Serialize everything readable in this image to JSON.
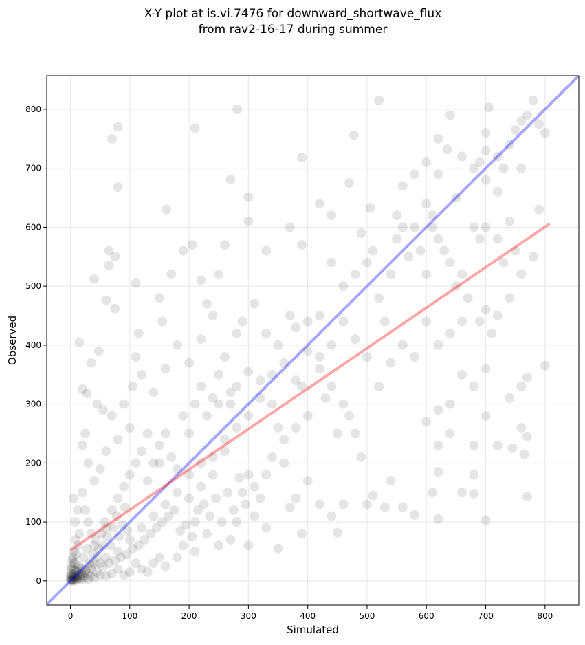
{
  "chart_data": {
    "type": "scatter",
    "title_line1": "X-Y plot at is.vi.7476 for downward_shortwave_flux",
    "title_line2": "from rav2-16-17 during summer",
    "xlabel": "Simulated",
    "ylabel": "Observed",
    "xlim": [
      -40,
      857
    ],
    "ylim": [
      -41,
      857
    ],
    "xticks": [
      0,
      100,
      200,
      300,
      400,
      500,
      600,
      700,
      800
    ],
    "yticks": [
      0,
      100,
      200,
      300,
      400,
      500,
      600,
      700,
      800
    ],
    "grid": true,
    "colors": {
      "points": "#000000",
      "one_to_one": "#0000ff",
      "regression": "#ff0000"
    },
    "lines": [
      {
        "name": "one-to-one",
        "x": [
          -40,
          857
        ],
        "y": [
          -40,
          857
        ]
      },
      {
        "name": "regression",
        "x": [
          0,
          808
        ],
        "y": [
          52,
          606
        ]
      }
    ],
    "points": [
      [
        281,
        800
      ],
      [
        210,
        768
      ],
      [
        80,
        770
      ],
      [
        70,
        750
      ],
      [
        80,
        668
      ],
      [
        162,
        630
      ],
      [
        520,
        815
      ],
      [
        478,
        756
      ],
      [
        390,
        718
      ],
      [
        300,
        610
      ],
      [
        300,
        651
      ],
      [
        270,
        681
      ],
      [
        155,
        440
      ],
      [
        110,
        505
      ],
      [
        65,
        560
      ],
      [
        65,
        535
      ],
      [
        75,
        550
      ],
      [
        40,
        512
      ],
      [
        60,
        476
      ],
      [
        75,
        462
      ],
      [
        15,
        405
      ],
      [
        35,
        370
      ],
      [
        48,
        390
      ],
      [
        20,
        325
      ],
      [
        28,
        318
      ],
      [
        105,
        330
      ],
      [
        110,
        380
      ],
      [
        115,
        420
      ],
      [
        780,
        815
      ],
      [
        705,
        803
      ],
      [
        760,
        780
      ],
      [
        770,
        790
      ],
      [
        790,
        775
      ],
      [
        800,
        760
      ],
      [
        750,
        765
      ],
      [
        740,
        740
      ],
      [
        720,
        720
      ],
      [
        690,
        710
      ],
      [
        700,
        730
      ],
      [
        640,
        790
      ],
      [
        635,
        732
      ],
      [
        620,
        690
      ],
      [
        600,
        640
      ],
      [
        610,
        620
      ],
      [
        650,
        650
      ],
      [
        680,
        700
      ],
      [
        700,
        680
      ],
      [
        720,
        660
      ],
      [
        730,
        700
      ],
      [
        760,
        700
      ],
      [
        790,
        630
      ],
      [
        780,
        550
      ],
      [
        760,
        520
      ],
      [
        740,
        480
      ],
      [
        700,
        460
      ],
      [
        690,
        440
      ],
      [
        710,
        420
      ],
      [
        720,
        450
      ],
      [
        700,
        360
      ],
      [
        680,
        330
      ],
      [
        660,
        350
      ],
      [
        640,
        300
      ],
      [
        620,
        290
      ],
      [
        600,
        270
      ],
      [
        620,
        230
      ],
      [
        640,
        250
      ],
      [
        680,
        230
      ],
      [
        700,
        280
      ],
      [
        720,
        230
      ],
      [
        740,
        310
      ],
      [
        760,
        330
      ],
      [
        770,
        345
      ],
      [
        800,
        365
      ],
      [
        760,
        260
      ],
      [
        770,
        245
      ],
      [
        765,
        215
      ],
      [
        745,
        225
      ],
      [
        770,
        143
      ],
      [
        700,
        103
      ],
      [
        660,
        150
      ],
      [
        680,
        180
      ],
      [
        680,
        148
      ],
      [
        620,
        105
      ],
      [
        620,
        185
      ],
      [
        610,
        150
      ],
      [
        580,
        112
      ],
      [
        560,
        125
      ],
      [
        540,
        170
      ],
      [
        530,
        125
      ],
      [
        510,
        145
      ],
      [
        500,
        130
      ],
      [
        490,
        210
      ],
      [
        480,
        250
      ],
      [
        470,
        280
      ],
      [
        450,
        250
      ],
      [
        460,
        300
      ],
      [
        440,
        330
      ],
      [
        420,
        360
      ],
      [
        430,
        310
      ],
      [
        400,
        280
      ],
      [
        390,
        330
      ],
      [
        380,
        260
      ],
      [
        360,
        240
      ],
      [
        350,
        260
      ],
      [
        340,
        210
      ],
      [
        330,
        180
      ],
      [
        310,
        160
      ],
      [
        320,
        140
      ],
      [
        300,
        180
      ],
      [
        290,
        150
      ],
      [
        280,
        100
      ],
      [
        310,
        110
      ],
      [
        330,
        90
      ],
      [
        350,
        55
      ],
      [
        300,
        60
      ],
      [
        370,
        125
      ],
      [
        390,
        80
      ],
      [
        420,
        130
      ],
      [
        440,
        110
      ],
      [
        450,
        82
      ],
      [
        460,
        130
      ],
      [
        400,
        170
      ],
      [
        380,
        140
      ],
      [
        360,
        200
      ],
      [
        340,
        300
      ],
      [
        320,
        340
      ],
      [
        300,
        355
      ],
      [
        280,
        330
      ],
      [
        270,
        320
      ],
      [
        250,
        300
      ],
      [
        260,
        220
      ],
      [
        240,
        180
      ],
      [
        220,
        160
      ],
      [
        200,
        140
      ],
      [
        210,
        100
      ],
      [
        230,
        80
      ],
      [
        250,
        60
      ],
      [
        270,
        70
      ],
      [
        210,
        50
      ],
      [
        190,
        60
      ],
      [
        180,
        40
      ],
      [
        160,
        25
      ],
      [
        150,
        40
      ],
      [
        140,
        30
      ],
      [
        130,
        15
      ],
      [
        120,
        20
      ],
      [
        110,
        30
      ],
      [
        100,
        15
      ],
      [
        90,
        10
      ],
      [
        80,
        20
      ],
      [
        70,
        12
      ],
      [
        60,
        8
      ],
      [
        50,
        10
      ],
      [
        40,
        5
      ],
      [
        30,
        3
      ],
      [
        20,
        2
      ],
      [
        10,
        1
      ],
      [
        5,
        0
      ],
      [
        2,
        2
      ],
      [
        0,
        0
      ],
      [
        3,
        10
      ],
      [
        5,
        20
      ],
      [
        8,
        30
      ],
      [
        10,
        45
      ],
      [
        12,
        60
      ],
      [
        15,
        80
      ],
      [
        8,
        100
      ],
      [
        12,
        120
      ],
      [
        5,
        140
      ],
      [
        20,
        150
      ],
      [
        25,
        120
      ],
      [
        30,
        100
      ],
      [
        35,
        80
      ],
      [
        40,
        60
      ],
      [
        45,
        40
      ],
      [
        50,
        30
      ],
      [
        55,
        60
      ],
      [
        60,
        90
      ],
      [
        70,
        120
      ],
      [
        80,
        140
      ],
      [
        90,
        160
      ],
      [
        100,
        180
      ],
      [
        110,
        200
      ],
      [
        120,
        220
      ],
      [
        130,
        170
      ],
      [
        140,
        200
      ],
      [
        150,
        230
      ],
      [
        160,
        250
      ],
      [
        170,
        210
      ],
      [
        180,
        190
      ],
      [
        190,
        280
      ],
      [
        200,
        250
      ],
      [
        210,
        300
      ],
      [
        220,
        330
      ],
      [
        230,
        280
      ],
      [
        240,
        310
      ],
      [
        250,
        350
      ],
      [
        260,
        380
      ],
      [
        270,
        300
      ],
      [
        280,
        420
      ],
      [
        290,
        440
      ],
      [
        310,
        470
      ],
      [
        330,
        420
      ],
      [
        350,
        400
      ],
      [
        370,
        450
      ],
      [
        380,
        430
      ],
      [
        400,
        440
      ],
      [
        420,
        450
      ],
      [
        440,
        540
      ],
      [
        460,
        500
      ],
      [
        480,
        520
      ],
      [
        490,
        590
      ],
      [
        500,
        540
      ],
      [
        510,
        560
      ],
      [
        520,
        480
      ],
      [
        530,
        440
      ],
      [
        540,
        520
      ],
      [
        550,
        580
      ],
      [
        560,
        600
      ],
      [
        570,
        550
      ],
      [
        580,
        600
      ],
      [
        590,
        560
      ],
      [
        600,
        520
      ],
      [
        610,
        600
      ],
      [
        620,
        580
      ],
      [
        630,
        560
      ],
      [
        640,
        540
      ],
      [
        650,
        500
      ],
      [
        660,
        520
      ],
      [
        670,
        480
      ],
      [
        680,
        600
      ],
      [
        690,
        580
      ],
      [
        700,
        600
      ],
      [
        720,
        580
      ],
      [
        740,
        610
      ],
      [
        750,
        560
      ],
      [
        730,
        540
      ],
      [
        660,
        440
      ],
      [
        640,
        420
      ],
      [
        620,
        400
      ],
      [
        600,
        440
      ],
      [
        580,
        380
      ],
      [
        560,
        400
      ],
      [
        540,
        370
      ],
      [
        520,
        330
      ],
      [
        500,
        380
      ],
      [
        480,
        410
      ],
      [
        460,
        440
      ],
      [
        440,
        400
      ],
      [
        420,
        380
      ],
      [
        400,
        390
      ],
      [
        380,
        340
      ],
      [
        360,
        370
      ],
      [
        340,
        350
      ],
      [
        320,
        310
      ],
      [
        300,
        280
      ],
      [
        280,
        260
      ],
      [
        260,
        240
      ],
      [
        240,
        210
      ],
      [
        220,
        200
      ],
      [
        200,
        180
      ],
      [
        180,
        150
      ],
      [
        160,
        130
      ],
      [
        140,
        110
      ],
      [
        120,
        90
      ],
      [
        100,
        70
      ],
      [
        80,
        50
      ],
      [
        60,
        40
      ],
      [
        40,
        30
      ],
      [
        20,
        20
      ],
      [
        15,
        10
      ],
      [
        25,
        15
      ],
      [
        35,
        20
      ],
      [
        45,
        15
      ],
      [
        55,
        25
      ],
      [
        65,
        30
      ],
      [
        75,
        35
      ],
      [
        85,
        40
      ],
      [
        95,
        45
      ],
      [
        105,
        55
      ],
      [
        115,
        60
      ],
      [
        125,
        70
      ],
      [
        135,
        80
      ],
      [
        145,
        90
      ],
      [
        155,
        100
      ],
      [
        165,
        110
      ],
      [
        175,
        120
      ],
      [
        185,
        85
      ],
      [
        195,
        95
      ],
      [
        205,
        75
      ],
      [
        215,
        120
      ],
      [
        225,
        130
      ],
      [
        235,
        110
      ],
      [
        245,
        140
      ],
      [
        255,
        100
      ],
      [
        265,
        150
      ],
      [
        275,
        120
      ],
      [
        285,
        175
      ],
      [
        295,
        130
      ],
      [
        150,
        200
      ],
      [
        130,
        250
      ],
      [
        100,
        260
      ],
      [
        80,
        240
      ],
      [
        60,
        220
      ],
      [
        50,
        190
      ],
      [
        40,
        170
      ],
      [
        30,
        200
      ],
      [
        20,
        230
      ],
      [
        25,
        250
      ],
      [
        45,
        300
      ],
      [
        55,
        290
      ],
      [
        70,
        280
      ],
      [
        90,
        300
      ],
      [
        120,
        350
      ],
      [
        140,
        320
      ],
      [
        160,
        360
      ],
      [
        180,
        400
      ],
      [
        200,
        370
      ],
      [
        220,
        410
      ],
      [
        240,
        450
      ],
      [
        250,
        520
      ],
      [
        230,
        470
      ],
      [
        205,
        570
      ],
      [
        220,
        510
      ],
      [
        190,
        560
      ],
      [
        170,
        520
      ],
      [
        150,
        480
      ],
      [
        260,
        570
      ],
      [
        330,
        560
      ],
      [
        370,
        600
      ],
      [
        390,
        570
      ],
      [
        420,
        640
      ],
      [
        440,
        620
      ],
      [
        470,
        675
      ],
      [
        505,
        633
      ],
      [
        550,
        620
      ],
      [
        560,
        670
      ],
      [
        580,
        690
      ],
      [
        600,
        710
      ],
      [
        620,
        750
      ],
      [
        660,
        720
      ],
      [
        700,
        760
      ],
      [
        0,
        5
      ],
      [
        2,
        8
      ],
      [
        4,
        3
      ],
      [
        6,
        12
      ],
      [
        8,
        5
      ],
      [
        10,
        15
      ],
      [
        12,
        8
      ],
      [
        14,
        25
      ],
      [
        16,
        4
      ],
      [
        18,
        12
      ],
      [
        3,
        35
      ],
      [
        6,
        50
      ],
      [
        9,
        70
      ],
      [
        1,
        20
      ],
      [
        22,
        40
      ],
      [
        28,
        55
      ],
      [
        32,
        30
      ],
      [
        38,
        45
      ],
      [
        42,
        70
      ],
      [
        48,
        55
      ],
      [
        52,
        80
      ],
      [
        58,
        100
      ],
      [
        62,
        75
      ],
      [
        68,
        60
      ],
      [
        72,
        90
      ],
      [
        78,
        110
      ],
      [
        82,
        75
      ],
      [
        88,
        95
      ],
      [
        92,
        125
      ],
      [
        96,
        85
      ],
      [
        1,
        3
      ],
      [
        3,
        1
      ],
      [
        5,
        6
      ],
      [
        7,
        2
      ],
      [
        9,
        9
      ],
      [
        11,
        4
      ],
      [
        13,
        16
      ],
      [
        17,
        7
      ],
      [
        19,
        22
      ],
      [
        21,
        9
      ],
      [
        24,
        6
      ],
      [
        26,
        18
      ],
      [
        30,
        12
      ],
      [
        34,
        8
      ],
      [
        36,
        26
      ],
      [
        0,
        12
      ],
      [
        2,
        25
      ],
      [
        4,
        40
      ],
      [
        6,
        30
      ],
      [
        8,
        18
      ]
    ]
  }
}
